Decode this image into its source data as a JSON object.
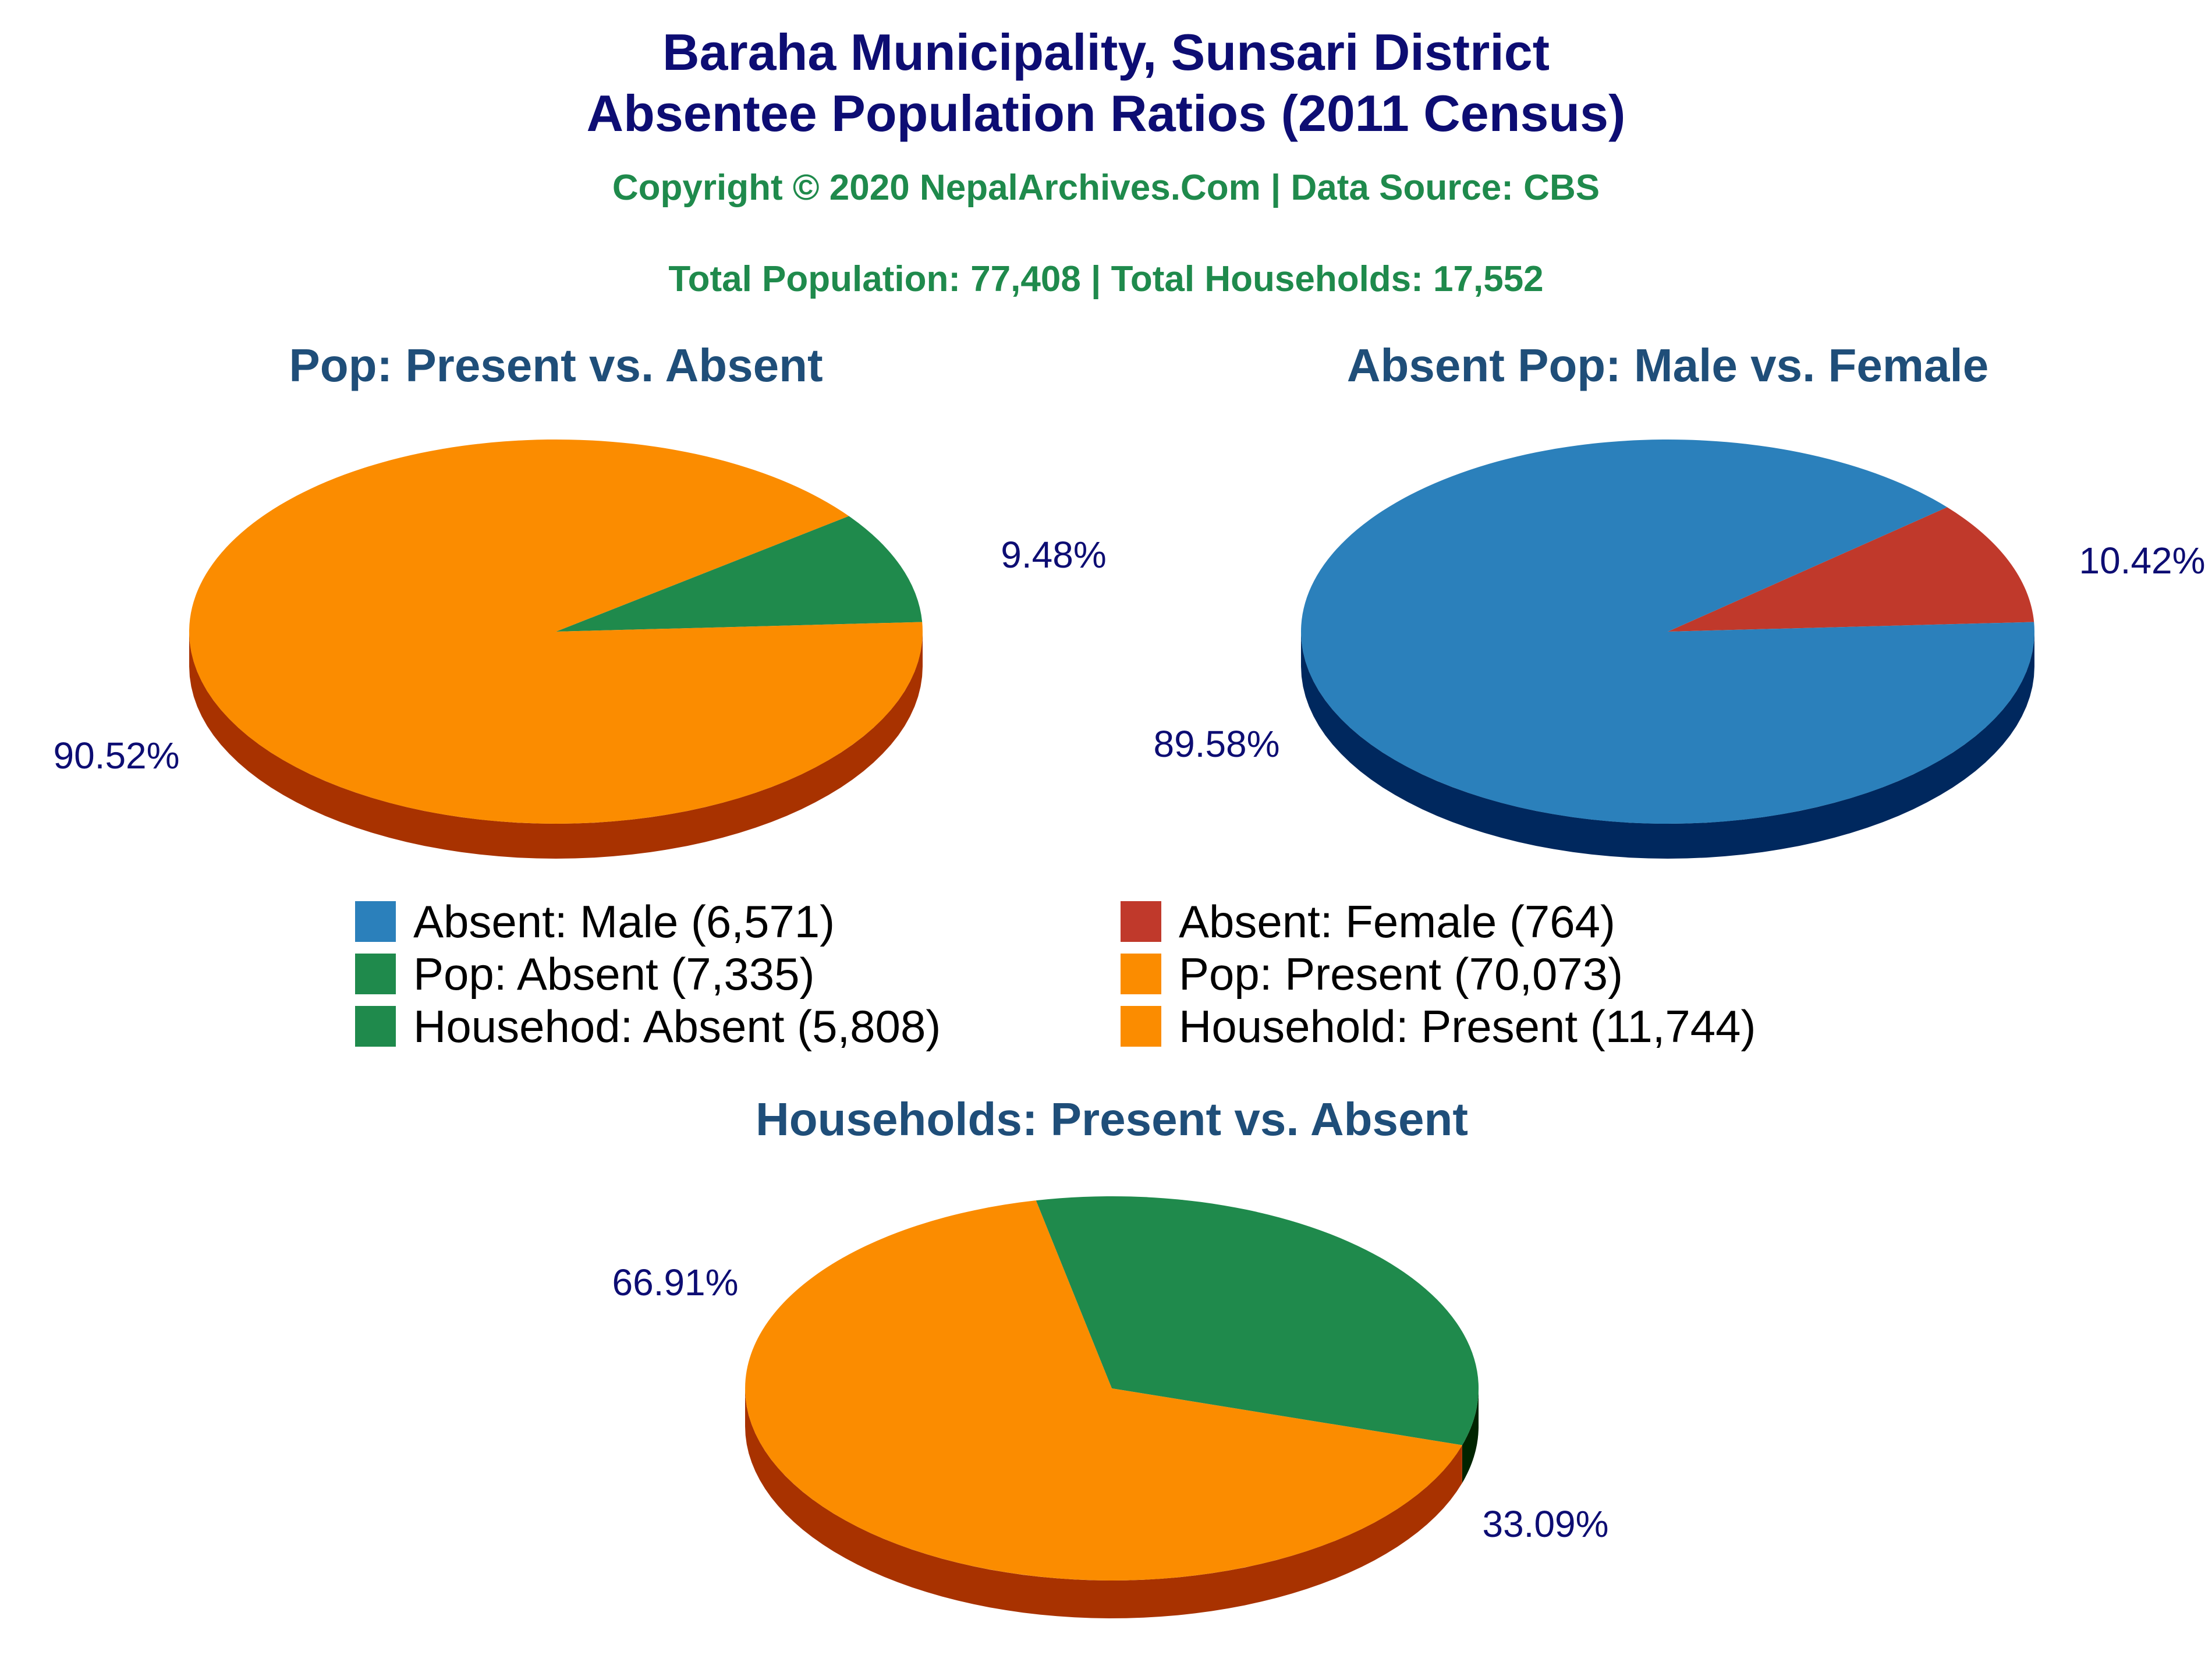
{
  "header": {
    "title_line1": "Baraha Municipality, Sunsari District",
    "title_line2": "Absentee Population Ratios (2011 Census)",
    "copyright": "Copyright © 2020 NepalArchives.Com | Data Source: CBS",
    "totals": "Total Population: 77,408 | Total Households: 17,552"
  },
  "colors": {
    "green": "#1f8a4c",
    "green_side": "#0f3d14",
    "orange": "#fb8c00",
    "orange_side": "#a83200",
    "blue": "#2b80bb",
    "blue_side": "#00285e",
    "red": "#c0392b",
    "red_side": "#7a1b12"
  },
  "chart_data": [
    {
      "type": "pie",
      "title": "Pop: Present vs. Absent",
      "slices": [
        {
          "name": "Pop: Absent",
          "value": 7335,
          "percent_label": "9.48%",
          "color": "#1f8a4c",
          "side_color": "#0f3d14"
        },
        {
          "name": "Pop: Present",
          "value": 70073,
          "percent_label": "90.52%",
          "color": "#fb8c00",
          "side_color": "#a83200"
        }
      ]
    },
    {
      "type": "pie",
      "title": "Absent Pop: Male vs. Female",
      "slices": [
        {
          "name": "Absent: Female",
          "value": 764,
          "percent_label": "10.42%",
          "color": "#c0392b",
          "side_color": "#7a1b12"
        },
        {
          "name": "Absent: Male",
          "value": 6571,
          "percent_label": "89.58%",
          "color": "#2b80bb",
          "side_color": "#00285e"
        }
      ]
    },
    {
      "type": "pie",
      "title": "Households: Present vs. Absent",
      "slices": [
        {
          "name": "Househod: Absent",
          "value": 5808,
          "percent_label": "33.09%",
          "color": "#1f8a4c",
          "side_color": "#002400"
        },
        {
          "name": "Household: Present",
          "value": 11744,
          "percent_label": "66.91%",
          "color": "#fb8c00",
          "side_color": "#a83200"
        }
      ]
    }
  ],
  "legend": [
    {
      "label": "Absent: Male (6,571)",
      "color": "#2b80bb"
    },
    {
      "label": "Absent: Female (764)",
      "color": "#c0392b"
    },
    {
      "label": "Pop: Absent (7,335)",
      "color": "#1f8a4c"
    },
    {
      "label": "Pop: Present (70,073)",
      "color": "#fb8c00"
    },
    {
      "label": "Househod: Absent (5,808)",
      "color": "#1f8a4c"
    },
    {
      "label": "Household: Present (11,744)",
      "color": "#fb8c00"
    }
  ]
}
